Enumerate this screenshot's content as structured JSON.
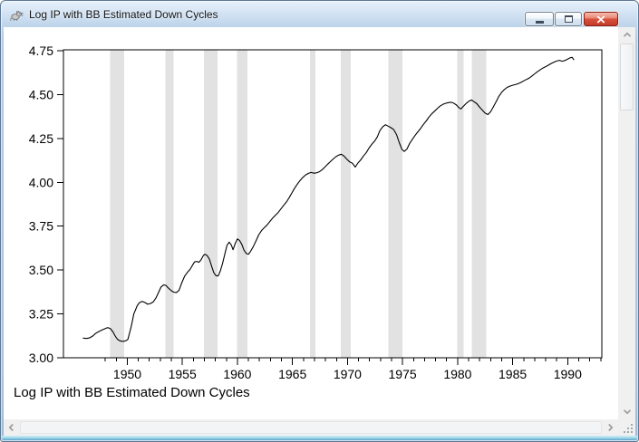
{
  "window": {
    "title": "Log IP with BB Estimated Down Cycles",
    "app_icon": "rat-icon",
    "controls": {
      "minimize": "minimize",
      "maximize": "maximize",
      "close": "close"
    }
  },
  "icons": {
    "minimize": "–",
    "maximize": "▢",
    "close": "✕",
    "scroll_up": "∧",
    "scroll_down": "∨",
    "scroll_left": "<",
    "scroll_right": ">",
    "resize_grip": "dots"
  },
  "chart_data": {
    "type": "line",
    "title": "",
    "caption": "Log IP with BB Estimated Down Cycles",
    "xlabel": "",
    "ylabel": "",
    "x_range": [
      1944.2,
      1993.1
    ],
    "y_range": [
      3.0,
      4.755
    ],
    "grid": false,
    "legend": false,
    "band_color": "#e2e2e2",
    "line_color": "#000000",
    "y_ticks": {
      "values": [
        3.0,
        3.25,
        3.5,
        3.75,
        4.0,
        4.25,
        4.5,
        4.75
      ],
      "labels": [
        "3.00",
        "3.25",
        "3.50",
        "3.75",
        "4.00",
        "4.25",
        "4.50",
        "4.75"
      ]
    },
    "x_major_ticks": {
      "values": [
        1950,
        1955,
        1960,
        1965,
        1970,
        1975,
        1980,
        1985,
        1990
      ],
      "labels": [
        "1950",
        "1955",
        "1960",
        "1965",
        "1970",
        "1975",
        "1980",
        "1985",
        "1990"
      ]
    },
    "x_minor_ticks": {
      "start": 1948,
      "end": 1993,
      "step": 1
    },
    "down_cycle_bands": [
      [
        1948.45,
        1949.7
      ],
      [
        1953.45,
        1954.2
      ],
      [
        1956.95,
        1958.2
      ],
      [
        1959.95,
        1960.9
      ],
      [
        1966.6,
        1967.1
      ],
      [
        1969.4,
        1970.3
      ],
      [
        1973.7,
        1975.0
      ],
      [
        1979.95,
        1980.55
      ],
      [
        1981.3,
        1982.6
      ]
    ],
    "series": [
      {
        "name": "Log IP",
        "points": [
          [
            1946.0,
            3.112
          ],
          [
            1946.3,
            3.11
          ],
          [
            1946.6,
            3.114
          ],
          [
            1946.9,
            3.126
          ],
          [
            1947.1,
            3.138
          ],
          [
            1947.4,
            3.149
          ],
          [
            1947.7,
            3.158
          ],
          [
            1948.0,
            3.166
          ],
          [
            1948.2,
            3.172
          ],
          [
            1948.45,
            3.167
          ],
          [
            1948.7,
            3.147
          ],
          [
            1948.9,
            3.124
          ],
          [
            1949.1,
            3.106
          ],
          [
            1949.3,
            3.097
          ],
          [
            1949.5,
            3.094
          ],
          [
            1949.7,
            3.094
          ],
          [
            1949.9,
            3.098
          ],
          [
            1950.05,
            3.105
          ],
          [
            1950.35,
            3.176
          ],
          [
            1950.6,
            3.251
          ],
          [
            1950.9,
            3.297
          ],
          [
            1951.1,
            3.314
          ],
          [
            1951.35,
            3.321
          ],
          [
            1951.6,
            3.315
          ],
          [
            1951.85,
            3.305
          ],
          [
            1952.1,
            3.309
          ],
          [
            1952.35,
            3.318
          ],
          [
            1952.6,
            3.34
          ],
          [
            1952.85,
            3.374
          ],
          [
            1953.05,
            3.402
          ],
          [
            1953.3,
            3.415
          ],
          [
            1953.5,
            3.413
          ],
          [
            1953.7,
            3.399
          ],
          [
            1953.95,
            3.385
          ],
          [
            1954.2,
            3.374
          ],
          [
            1954.45,
            3.371
          ],
          [
            1954.7,
            3.384
          ],
          [
            1954.95,
            3.428
          ],
          [
            1955.2,
            3.464
          ],
          [
            1955.45,
            3.486
          ],
          [
            1955.7,
            3.504
          ],
          [
            1955.95,
            3.53
          ],
          [
            1956.1,
            3.546
          ],
          [
            1956.3,
            3.549
          ],
          [
            1956.5,
            3.544
          ],
          [
            1956.7,
            3.558
          ],
          [
            1956.9,
            3.582
          ],
          [
            1957.05,
            3.59
          ],
          [
            1957.25,
            3.583
          ],
          [
            1957.45,
            3.562
          ],
          [
            1957.65,
            3.523
          ],
          [
            1957.85,
            3.486
          ],
          [
            1958.05,
            3.468
          ],
          [
            1958.25,
            3.466
          ],
          [
            1958.45,
            3.495
          ],
          [
            1958.65,
            3.537
          ],
          [
            1958.85,
            3.59
          ],
          [
            1959.05,
            3.64
          ],
          [
            1959.25,
            3.659
          ],
          [
            1959.45,
            3.643
          ],
          [
            1959.6,
            3.616
          ],
          [
            1959.8,
            3.651
          ],
          [
            1960.0,
            3.677
          ],
          [
            1960.2,
            3.668
          ],
          [
            1960.4,
            3.646
          ],
          [
            1960.6,
            3.613
          ],
          [
            1960.8,
            3.595
          ],
          [
            1961.0,
            3.59
          ],
          [
            1961.2,
            3.607
          ],
          [
            1961.45,
            3.634
          ],
          [
            1961.7,
            3.668
          ],
          [
            1961.95,
            3.702
          ],
          [
            1962.2,
            3.726
          ],
          [
            1962.45,
            3.742
          ],
          [
            1962.7,
            3.757
          ],
          [
            1962.95,
            3.777
          ],
          [
            1963.2,
            3.796
          ],
          [
            1963.45,
            3.812
          ],
          [
            1963.7,
            3.828
          ],
          [
            1963.95,
            3.848
          ],
          [
            1964.2,
            3.868
          ],
          [
            1964.45,
            3.888
          ],
          [
            1964.7,
            3.912
          ],
          [
            1964.95,
            3.94
          ],
          [
            1965.2,
            3.967
          ],
          [
            1965.45,
            3.99
          ],
          [
            1965.7,
            4.011
          ],
          [
            1965.95,
            4.028
          ],
          [
            1966.2,
            4.042
          ],
          [
            1966.45,
            4.051
          ],
          [
            1966.7,
            4.056
          ],
          [
            1966.95,
            4.052
          ],
          [
            1967.2,
            4.054
          ],
          [
            1967.45,
            4.06
          ],
          [
            1967.7,
            4.072
          ],
          [
            1967.95,
            4.087
          ],
          [
            1968.2,
            4.103
          ],
          [
            1968.45,
            4.118
          ],
          [
            1968.7,
            4.133
          ],
          [
            1968.95,
            4.146
          ],
          [
            1969.2,
            4.155
          ],
          [
            1969.45,
            4.16
          ],
          [
            1969.7,
            4.148
          ],
          [
            1969.95,
            4.131
          ],
          [
            1970.2,
            4.116
          ],
          [
            1970.45,
            4.108
          ],
          [
            1970.7,
            4.087
          ],
          [
            1970.95,
            4.11
          ],
          [
            1971.2,
            4.128
          ],
          [
            1971.45,
            4.15
          ],
          [
            1971.7,
            4.168
          ],
          [
            1971.95,
            4.195
          ],
          [
            1972.2,
            4.216
          ],
          [
            1972.45,
            4.234
          ],
          [
            1972.7,
            4.258
          ],
          [
            1972.95,
            4.295
          ],
          [
            1973.2,
            4.317
          ],
          [
            1973.45,
            4.328
          ],
          [
            1973.7,
            4.32
          ],
          [
            1973.95,
            4.311
          ],
          [
            1974.2,
            4.3
          ],
          [
            1974.45,
            4.272
          ],
          [
            1974.7,
            4.226
          ],
          [
            1974.95,
            4.187
          ],
          [
            1975.15,
            4.176
          ],
          [
            1975.4,
            4.19
          ],
          [
            1975.65,
            4.222
          ],
          [
            1975.9,
            4.246
          ],
          [
            1976.15,
            4.268
          ],
          [
            1976.4,
            4.288
          ],
          [
            1976.65,
            4.308
          ],
          [
            1976.9,
            4.33
          ],
          [
            1977.15,
            4.35
          ],
          [
            1977.4,
            4.372
          ],
          [
            1977.65,
            4.39
          ],
          [
            1977.9,
            4.405
          ],
          [
            1978.15,
            4.42
          ],
          [
            1978.4,
            4.434
          ],
          [
            1978.65,
            4.444
          ],
          [
            1978.9,
            4.45
          ],
          [
            1979.15,
            4.454
          ],
          [
            1979.4,
            4.456
          ],
          [
            1979.65,
            4.451
          ],
          [
            1979.9,
            4.44
          ],
          [
            1980.1,
            4.426
          ],
          [
            1980.3,
            4.418
          ],
          [
            1980.55,
            4.435
          ],
          [
            1980.8,
            4.451
          ],
          [
            1981.05,
            4.463
          ],
          [
            1981.25,
            4.469
          ],
          [
            1981.5,
            4.459
          ],
          [
            1981.75,
            4.448
          ],
          [
            1982.0,
            4.428
          ],
          [
            1982.25,
            4.411
          ],
          [
            1982.5,
            4.394
          ],
          [
            1982.75,
            4.386
          ],
          [
            1983.0,
            4.402
          ],
          [
            1983.25,
            4.43
          ],
          [
            1983.5,
            4.46
          ],
          [
            1983.75,
            4.49
          ],
          [
            1984.0,
            4.513
          ],
          [
            1984.25,
            4.529
          ],
          [
            1984.5,
            4.541
          ],
          [
            1984.75,
            4.548
          ],
          [
            1985.0,
            4.553
          ],
          [
            1985.25,
            4.557
          ],
          [
            1985.5,
            4.562
          ],
          [
            1985.75,
            4.569
          ],
          [
            1986.0,
            4.578
          ],
          [
            1986.25,
            4.586
          ],
          [
            1986.5,
            4.594
          ],
          [
            1986.75,
            4.606
          ],
          [
            1987.0,
            4.618
          ],
          [
            1987.25,
            4.63
          ],
          [
            1987.5,
            4.641
          ],
          [
            1987.75,
            4.651
          ],
          [
            1988.0,
            4.659
          ],
          [
            1988.25,
            4.668
          ],
          [
            1988.5,
            4.677
          ],
          [
            1988.75,
            4.685
          ],
          [
            1989.0,
            4.691
          ],
          [
            1989.25,
            4.695
          ],
          [
            1989.5,
            4.69
          ],
          [
            1989.75,
            4.694
          ],
          [
            1990.0,
            4.702
          ],
          [
            1990.2,
            4.709
          ],
          [
            1990.4,
            4.712
          ],
          [
            1990.55,
            4.699
          ]
        ]
      }
    ]
  }
}
